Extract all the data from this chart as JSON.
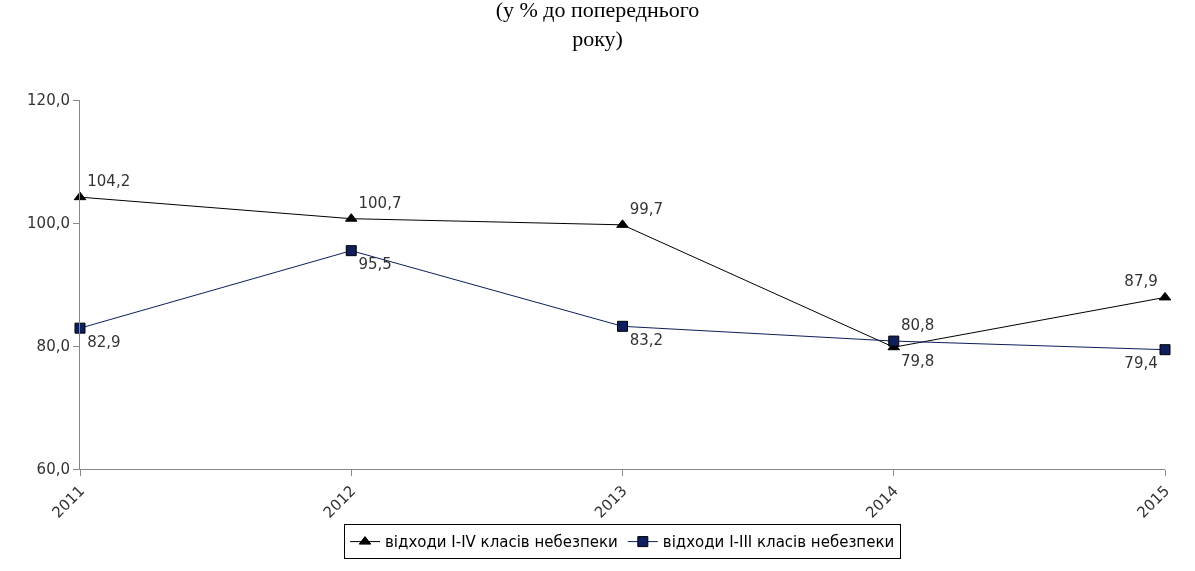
{
  "chart_data": {
    "type": "line",
    "title": "(у % до попереднього\nроку)",
    "categories": [
      "2011",
      "2012",
      "2013",
      "2014",
      "2015"
    ],
    "series": [
      {
        "name": "відходи I-IV класів небезпеки",
        "color": "#000000",
        "marker": "triangle",
        "values": [
          104.2,
          100.7,
          99.7,
          79.8,
          87.9
        ],
        "value_labels": [
          "104,2",
          "100,7",
          "99,7",
          "79,8",
          "87,9"
        ]
      },
      {
        "name": "відходи I-III класів небезпеки",
        "color": "#0d1f5c",
        "marker": "square",
        "values": [
          82.9,
          95.5,
          83.2,
          80.8,
          79.4
        ],
        "value_labels": [
          "82,9",
          "95,5",
          "83,2",
          "80,8",
          "79,4"
        ]
      }
    ],
    "ylim": [
      60,
      120
    ],
    "yticks": [
      {
        "value": 60,
        "label": "60,0"
      },
      {
        "value": 80,
        "label": "80,0"
      },
      {
        "value": 100,
        "label": "100,0"
      },
      {
        "value": 120,
        "label": "120,0"
      }
    ],
    "legend": "bottom",
    "line_style": "solid"
  }
}
